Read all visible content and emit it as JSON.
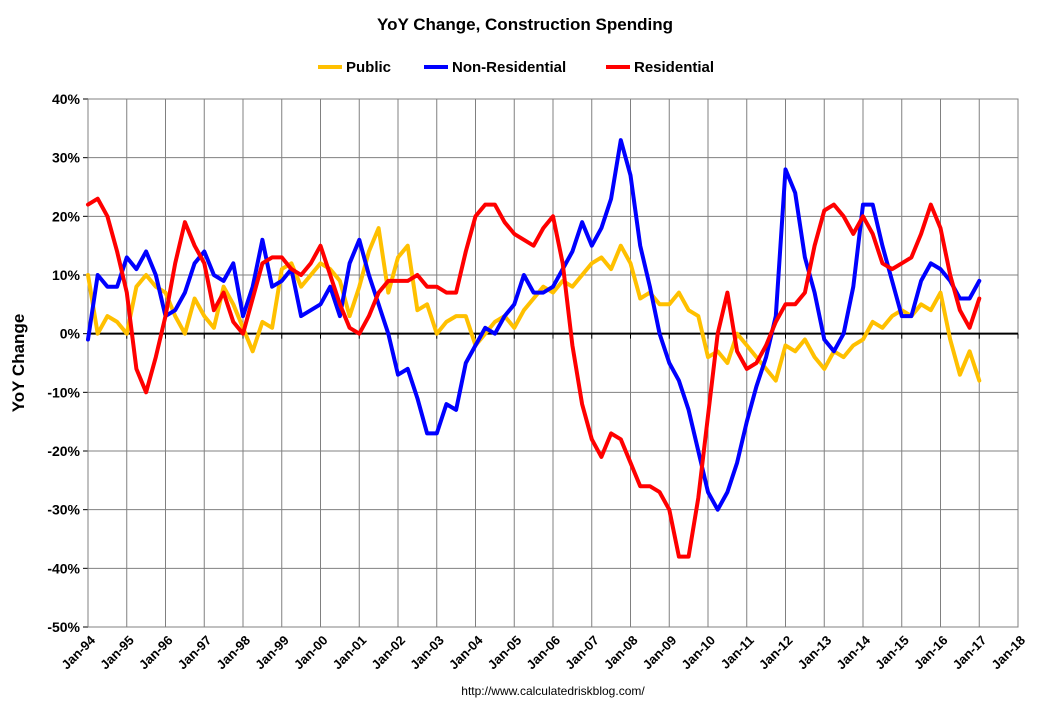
{
  "chart_data": {
    "type": "line",
    "title": "YoY Change,  Construction Spending",
    "y_label": "YoY Change",
    "source": "http://www.calculatedriskblog.com/",
    "x": [
      1994,
      1994.25,
      1994.5,
      1994.75,
      1995,
      1995.25,
      1995.5,
      1995.75,
      1996,
      1996.25,
      1996.5,
      1996.75,
      1997,
      1997.25,
      1997.5,
      1997.75,
      1998,
      1998.25,
      1998.5,
      1998.75,
      1999,
      1999.25,
      1999.5,
      1999.75,
      2000,
      2000.25,
      2000.5,
      2000.75,
      2001,
      2001.25,
      2001.5,
      2001.75,
      2002,
      2002.25,
      2002.5,
      2002.75,
      2003,
      2003.25,
      2003.5,
      2003.75,
      2004,
      2004.25,
      2004.5,
      2004.75,
      2005,
      2005.25,
      2005.5,
      2005.75,
      2006,
      2006.25,
      2006.5,
      2006.75,
      2007,
      2007.25,
      2007.5,
      2007.75,
      2008,
      2008.25,
      2008.5,
      2008.75,
      2009,
      2009.25,
      2009.5,
      2009.75,
      2010,
      2010.25,
      2010.5,
      2010.75,
      2011,
      2011.25,
      2011.5,
      2011.75,
      2012,
      2012.25,
      2012.5,
      2012.75,
      2013,
      2013.25,
      2013.5,
      2013.75,
      2014,
      2014.25,
      2014.5,
      2014.75,
      2015,
      2015.25,
      2015.5,
      2015.75,
      2016,
      2016.25,
      2016.5,
      2016.75,
      2017
    ],
    "series": [
      {
        "name": "Public",
        "color": "#ffc000",
        "values": [
          10,
          0,
          3,
          2,
          0,
          8,
          10,
          8,
          7,
          3,
          0,
          6,
          3,
          1,
          8,
          5,
          1,
          -3,
          2,
          1,
          11,
          12,
          8,
          10,
          12,
          11,
          9,
          3,
          8,
          14,
          18,
          7,
          13,
          15,
          4,
          5,
          0,
          2,
          3,
          3,
          -2,
          0,
          2,
          3,
          1,
          4,
          6,
          8,
          7,
          9,
          8,
          10,
          12,
          13,
          11,
          15,
          12,
          6,
          7,
          5,
          5,
          7,
          4,
          3,
          -4,
          -3,
          -5,
          0,
          -2,
          -4,
          -6,
          -8,
          -2,
          -3,
          -1,
          -4,
          -6,
          -3,
          -4,
          -2,
          -1,
          2,
          1,
          3,
          4,
          3,
          5,
          4,
          7,
          -1,
          -7,
          -3,
          -8
        ]
      },
      {
        "name": "Non-Residential",
        "color": "#0000ff",
        "values": [
          -1,
          10,
          8,
          8,
          13,
          11,
          14,
          10,
          3,
          4,
          7,
          12,
          14,
          10,
          9,
          12,
          3,
          8,
          16,
          8,
          9,
          11,
          3,
          4,
          5,
          8,
          3,
          12,
          16,
          10,
          5,
          0,
          -7,
          -6,
          -11,
          -17,
          -17,
          -12,
          -13,
          -5,
          -2,
          1,
          0,
          3,
          5,
          10,
          7,
          7,
          8,
          11,
          14,
          19,
          15,
          18,
          23,
          33,
          27,
          15,
          8,
          0,
          -5,
          -8,
          -13,
          -20,
          -27,
          -30,
          -27,
          -22,
          -15,
          -9,
          -4,
          3,
          28,
          24,
          13,
          7,
          -1,
          -3,
          0,
          8,
          22,
          22,
          15,
          9,
          3,
          3,
          9,
          12,
          11,
          9,
          6,
          6,
          9
        ]
      },
      {
        "name": "Residential",
        "color": "#ff0000",
        "values": [
          22,
          23,
          20,
          14,
          7,
          -6,
          -10,
          -4,
          3,
          12,
          19,
          15,
          12,
          4,
          7,
          2,
          0,
          6,
          12,
          13,
          13,
          11,
          10,
          12,
          15,
          10,
          5,
          1,
          0,
          3,
          7,
          9,
          9,
          9,
          10,
          8,
          8,
          7,
          7,
          14,
          20,
          22,
          22,
          19,
          17,
          16,
          15,
          18,
          20,
          12,
          -2,
          -12,
          -18,
          -21,
          -17,
          -18,
          -22,
          -26,
          -26,
          -27,
          -30,
          -38,
          -38,
          -28,
          -14,
          0,
          7,
          -3,
          -6,
          -5,
          -2,
          2,
          5,
          5,
          7,
          15,
          21,
          22,
          20,
          17,
          20,
          17,
          12,
          11,
          12,
          13,
          17,
          22,
          18,
          10,
          4,
          1,
          6
        ]
      }
    ],
    "xlim": [
      1994,
      2018
    ],
    "xticks": [
      {
        "value": 1994,
        "label": "Jan-94"
      },
      {
        "value": 1995,
        "label": "Jan-95"
      },
      {
        "value": 1996,
        "label": "Jan-96"
      },
      {
        "value": 1997,
        "label": "Jan-97"
      },
      {
        "value": 1998,
        "label": "Jan-98"
      },
      {
        "value": 1999,
        "label": "Jan-99"
      },
      {
        "value": 2000,
        "label": "Jan-00"
      },
      {
        "value": 2001,
        "label": "Jan-01"
      },
      {
        "value": 2002,
        "label": "Jan-02"
      },
      {
        "value": 2003,
        "label": "Jan-03"
      },
      {
        "value": 2004,
        "label": "Jan-04"
      },
      {
        "value": 2005,
        "label": "Jan-05"
      },
      {
        "value": 2006,
        "label": "Jan-06"
      },
      {
        "value": 2007,
        "label": "Jan-07"
      },
      {
        "value": 2008,
        "label": "Jan-08"
      },
      {
        "value": 2009,
        "label": "Jan-09"
      },
      {
        "value": 2010,
        "label": "Jan-10"
      },
      {
        "value": 2011,
        "label": "Jan-11"
      },
      {
        "value": 2012,
        "label": "Jan-12"
      },
      {
        "value": 2013,
        "label": "Jan-13"
      },
      {
        "value": 2014,
        "label": "Jan-14"
      },
      {
        "value": 2015,
        "label": "Jan-15"
      },
      {
        "value": 2016,
        "label": "Jan-16"
      },
      {
        "value": 2017,
        "label": "Jan-17"
      },
      {
        "value": 2018,
        "label": "Jan-18"
      }
    ],
    "ylim": [
      -50,
      40
    ],
    "yticks": [
      {
        "value": -50,
        "label": "-50%"
      },
      {
        "value": -40,
        "label": "-40%"
      },
      {
        "value": -30,
        "label": "-30%"
      },
      {
        "value": -20,
        "label": "-20%"
      },
      {
        "value": -10,
        "label": "-10%"
      },
      {
        "value": 0,
        "label": "0%"
      },
      {
        "value": 10,
        "label": "10%"
      },
      {
        "value": 20,
        "label": "20%"
      },
      {
        "value": 30,
        "label": "30%"
      },
      {
        "value": 40,
        "label": "40%"
      }
    ],
    "grid": true
  }
}
